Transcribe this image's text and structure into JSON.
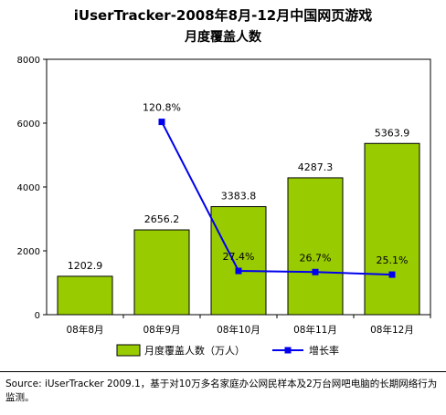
{
  "title_line1": "iUserTracker-2008年8月-12月中国网页游戏",
  "title_line2": "月度覆盖人数",
  "source_text": "Source:  iUserTracker 2009.1，基于对10万多名家庭办公网民样本及2万台网吧电脑的长期网络行为监测。",
  "colors": {
    "bar": "#99cc00",
    "line": "#0000ee",
    "plot_bg": "#ffffff"
  },
  "chart_data": {
    "type": "bar",
    "title": "iUserTracker-2008年8月-12月中国网页游戏 月度覆盖人数",
    "categories": [
      "08年8月",
      "08年9月",
      "08年10月",
      "08年11月",
      "08年12月"
    ],
    "ylim": [
      0,
      8000
    ],
    "yticks": [
      0,
      2000,
      4000,
      6000,
      8000
    ],
    "grid": false,
    "legend_position": "bottom",
    "series": [
      {
        "name": "月度覆盖人数（万人）",
        "type": "bar",
        "values": [
          1202.9,
          2656.2,
          3383.8,
          4287.3,
          5363.9
        ],
        "labels": [
          "1202.9",
          "2656.2",
          "3383.8",
          "4287.3",
          "5363.9"
        ]
      },
      {
        "name": "增长率",
        "type": "line",
        "values": [
          null,
          120.8,
          27.4,
          26.7,
          25.1
        ],
        "labels": [
          "",
          "120.8%",
          "27.4%",
          "26.7%",
          "25.1%"
        ]
      }
    ]
  }
}
